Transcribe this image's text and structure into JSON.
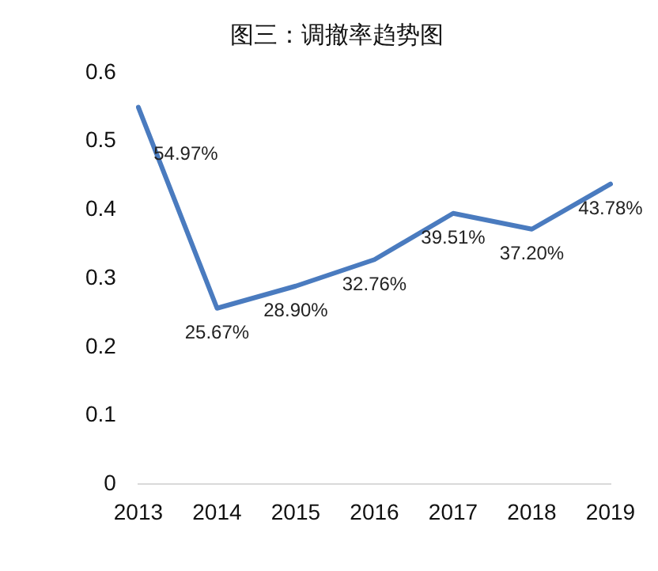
{
  "chart_data": {
    "type": "line",
    "title": "图三：调撤率趋势图",
    "categories": [
      "2013",
      "2014",
      "2015",
      "2016",
      "2017",
      "2018",
      "2019"
    ],
    "series": [
      {
        "color": "#4a7bbf",
        "values": [
          0.5497,
          0.2567,
          0.289,
          0.3276,
          0.3951,
          0.372,
          0.4378
        ],
        "value_labels": [
          "54.97%",
          "25.67%",
          "28.90%",
          "32.76%",
          "39.51%",
          "37.20%",
          "43.78%"
        ]
      }
    ],
    "ylim": [
      0,
      0.6
    ],
    "yticks": [
      0,
      0.1,
      0.2,
      0.3,
      0.4,
      0.5,
      0.6
    ],
    "grid": false,
    "legend": false,
    "marker": "none",
    "line_style": "solid"
  }
}
